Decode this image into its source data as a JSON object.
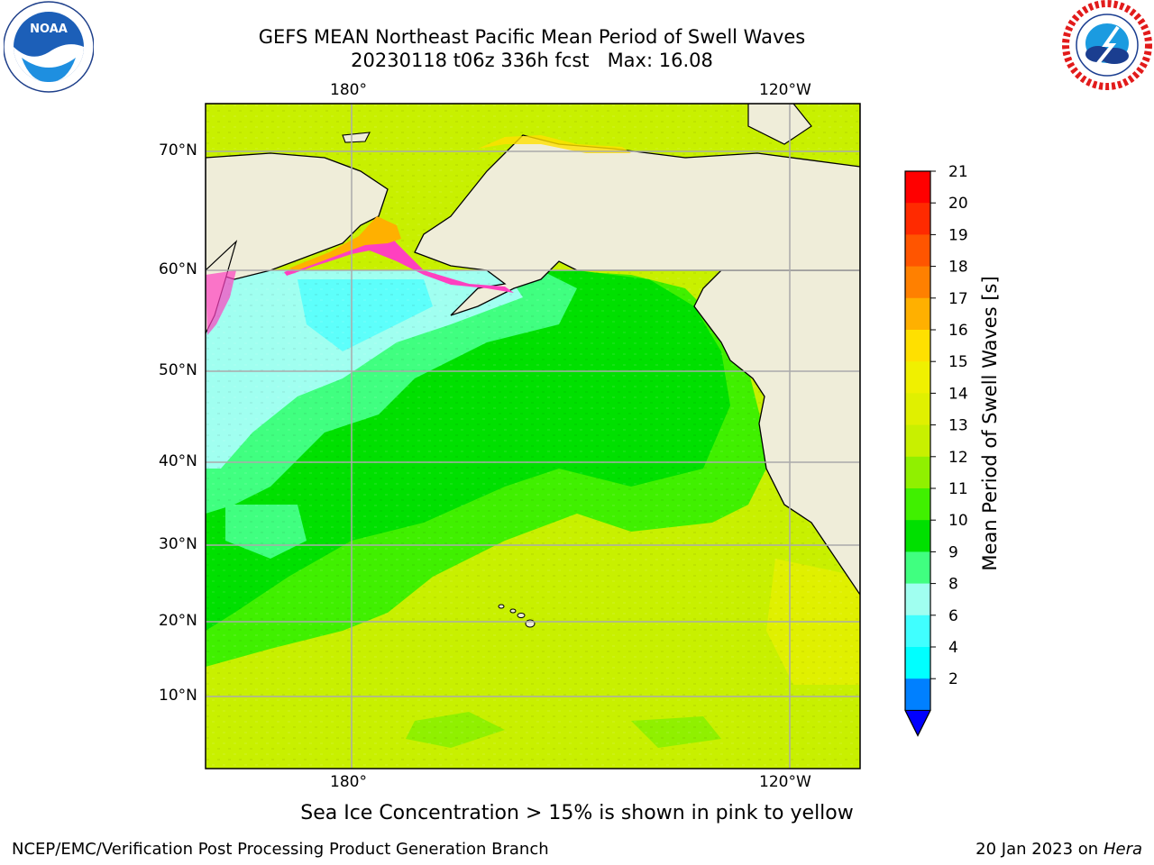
{
  "title_line1": "GEFS MEAN Northeast Pacific Mean Period of Swell Waves",
  "title_line2": "20230118 t06z 336h fcst   Max: 16.08",
  "lon_labels": [
    "180°",
    "120°W"
  ],
  "lat_labels": [
    "70°N",
    "60°N",
    "50°N",
    "40°N",
    "30°N",
    "20°N",
    "10°N"
  ],
  "colorbar": {
    "label": "Mean Period of Swell Waves [s]",
    "ticks": [
      "21",
      "20",
      "19",
      "18",
      "17",
      "16",
      "15",
      "14",
      "13",
      "12",
      "11",
      "10",
      "9",
      "8",
      "6",
      "4",
      "2"
    ],
    "colors": [
      "#ff0000",
      "#ff2a00",
      "#ff5500",
      "#ff8000",
      "#ffb000",
      "#ffe000",
      "#f0f000",
      "#e0f000",
      "#c8f000",
      "#90f000",
      "#40f000",
      "#00e000",
      "#40ff80",
      "#a0fff0",
      "#40ffff",
      "#00ffff",
      "#0080ff"
    ],
    "extend_color": "#0000ff"
  },
  "notes": {
    "sea_ice": "Sea Ice Concentration > 15% is shown in pink to yellow",
    "branch": "NCEP/EMC/Verification Post Processing Product Generation Branch",
    "date_prefix": "20 Jan 2023 on ",
    "machine": "Hera"
  },
  "logos": {
    "noaa_text": "NOAA"
  },
  "colors": {
    "land": "#efedd9",
    "grid": "#aaaaaa"
  }
}
